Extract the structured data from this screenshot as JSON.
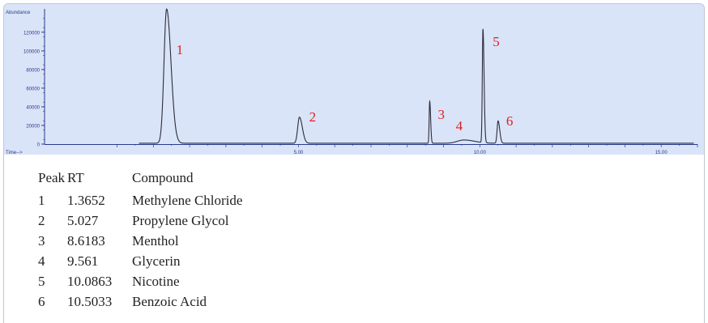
{
  "chart_data": {
    "type": "line",
    "y_axis_label": "Abundance",
    "x_axis_label": "Time-->",
    "y_ticks": [
      "0",
      "20000",
      "40000",
      "60000",
      "80000",
      "100000",
      "120000"
    ],
    "y_tick_values": [
      0,
      20000,
      40000,
      60000,
      80000,
      100000,
      120000
    ],
    "x_ticks": [
      "5.00",
      "10.00",
      "15.00"
    ],
    "x_tick_values": [
      5,
      10,
      15
    ],
    "xlim": [
      -2.0,
      16.0
    ],
    "ylim": [
      0,
      145000
    ],
    "colors": {
      "plot_bg": "#d9e4f8",
      "line": "#2c2c3a",
      "axis": "#2b3a8c",
      "peak_label": "#e02020"
    },
    "peaks": [
      {
        "label": "1",
        "x": 1.3652,
        "height": 144000
      },
      {
        "label": "2",
        "x": 5.027,
        "height": 28000
      },
      {
        "label": "3",
        "x": 8.6183,
        "height": 45000
      },
      {
        "label": "4",
        "x": 9.561,
        "height": 3500
      },
      {
        "label": "5",
        "x": 10.0863,
        "height": 122000
      },
      {
        "label": "6",
        "x": 10.5033,
        "height": 24000
      }
    ]
  },
  "table": {
    "headers": {
      "peak": "Peak",
      "rt": "RT",
      "compound": "Compound"
    },
    "rows": [
      {
        "peak": "1",
        "rt": "1.3652",
        "compound": "Methylene Chloride"
      },
      {
        "peak": "2",
        "rt": "5.027",
        "compound": "Propylene Glycol"
      },
      {
        "peak": "3",
        "rt": "8.6183",
        "compound": "Menthol"
      },
      {
        "peak": "4",
        "rt": "9.561",
        "compound": "Glycerin"
      },
      {
        "peak": "5",
        "rt": "10.0863",
        "compound": "Nicotine"
      },
      {
        "peak": "6",
        "rt": "10.5033",
        "compound": "Benzoic Acid"
      }
    ]
  }
}
